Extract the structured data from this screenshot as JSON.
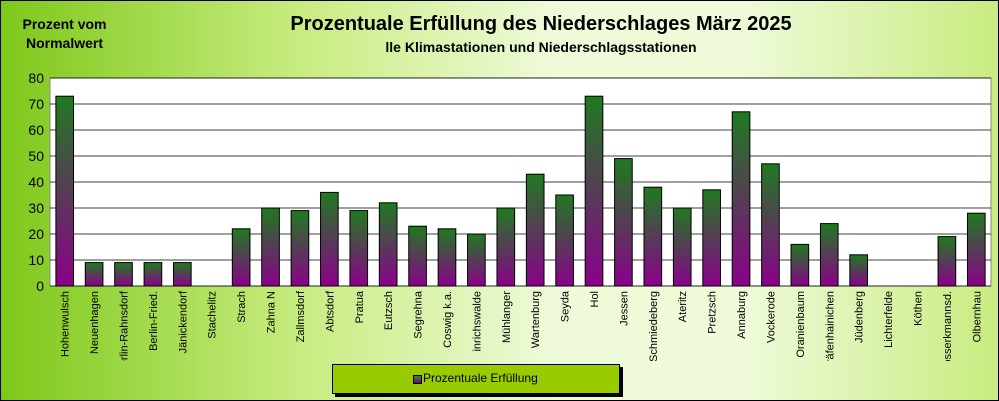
{
  "header": {
    "ylabel": "Prozent vom Normalwert",
    "title": "Prozentuale  Erfüllung  des Niederschlages  März 2025",
    "subtitle": "lle Klimastationen  und Niederschlagsstationen"
  },
  "legend": {
    "label": "Prozentuale Erfüllung"
  },
  "colors": {
    "bar_top": "#1f7a1f",
    "bar_bottom": "#8b008b",
    "plot_bg": "#ffffff",
    "background_accent": "#99cc00"
  },
  "chart_data": {
    "type": "bar",
    "title": "Prozentuale  Erfüllung  des Niederschlages  März 2025",
    "subtitle": "lle Klimastationen  und Niederschlagsstationen",
    "ylabel": "Prozent vom Normalwert",
    "xlabel": "",
    "ylim": [
      0,
      80
    ],
    "yticks": [
      0,
      10,
      20,
      30,
      40,
      50,
      60,
      70,
      80
    ],
    "grid": true,
    "legend_position": "bottom-center",
    "categories": [
      "Hohenwulsch",
      "Neuenhagen",
      "Berlin-Rahnsdorf",
      "Berlin-Fried.",
      "Jänickendorf",
      "Stachelitz",
      "Strach",
      "Zahna N",
      "Zallmsdorf",
      "Abtsdorf",
      "Pratua",
      "Eutzsch",
      "Segrehna",
      "Coswig k.a.",
      "inrichswalde",
      "Mühlanger",
      "Wartenburg",
      "Seyda",
      "Hol",
      "Jessen",
      "Schmiedeberg",
      "Ateritz",
      "Pretzsch",
      "Annaburg",
      "Vockerode",
      "Oranienbaum",
      "Gräfenhainichen",
      "Jüdenberg",
      "Lichterfelde",
      "Köthen",
      "Grosserkmannsd.",
      "Olbernhau"
    ],
    "series": [
      {
        "name": "Prozentuale Erfüllung",
        "values": [
          73,
          9,
          9,
          9,
          9,
          0,
          22,
          30,
          29,
          36,
          29,
          32,
          23,
          22,
          20,
          30,
          43,
          35,
          73,
          49,
          38,
          30,
          37,
          67,
          47,
          16,
          24,
          12,
          0,
          0,
          19,
          28
        ]
      }
    ]
  }
}
